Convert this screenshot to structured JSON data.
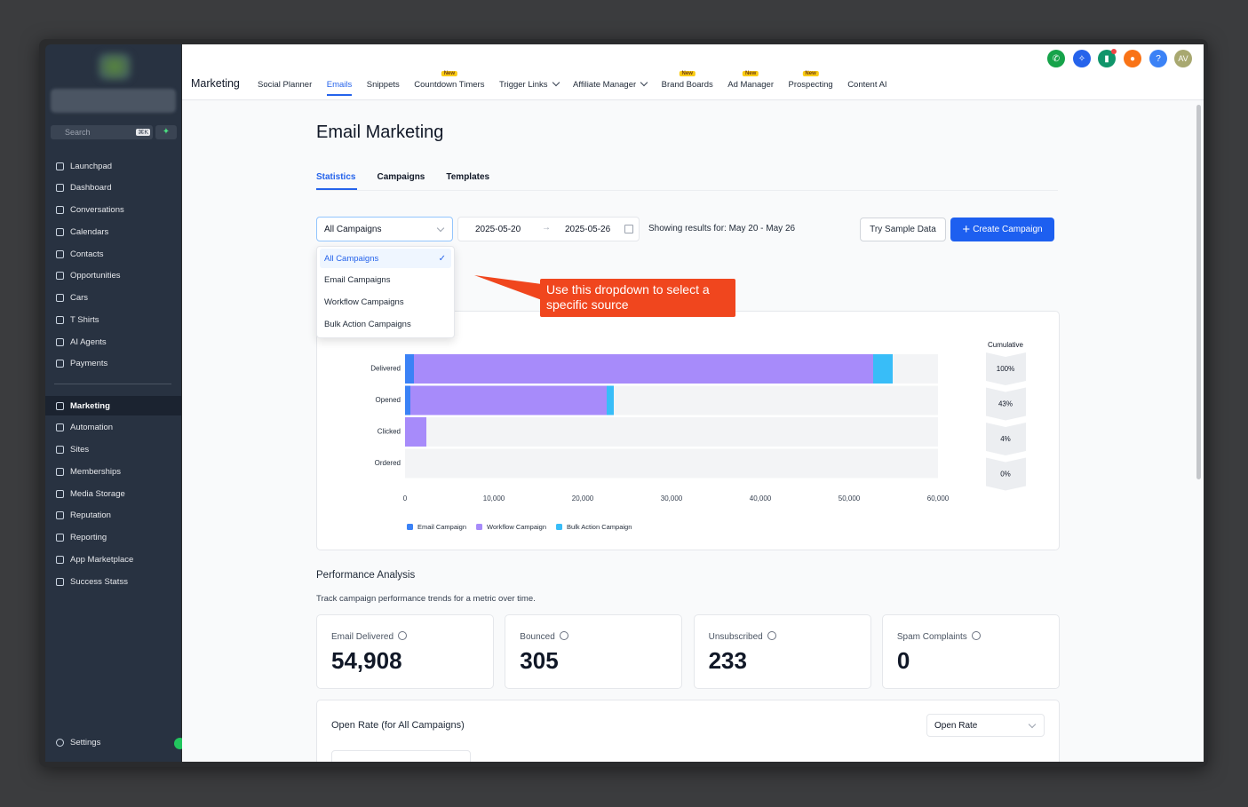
{
  "sidebar": {
    "search": {
      "placeholder": "Search",
      "shortcut": "⌘K"
    },
    "items": [
      "Launchpad",
      "Dashboard",
      "Conversations",
      "Calendars",
      "Contacts",
      "Opportunities",
      "Cars",
      "T Shirts",
      "AI Agents",
      "Payments"
    ],
    "items2": [
      "Marketing",
      "Automation",
      "Sites",
      "Memberships",
      "Media Storage",
      "Reputation",
      "Reporting",
      "App Marketplace",
      "Success Statss"
    ],
    "active": "Marketing",
    "settings": "Settings"
  },
  "header": {
    "title": "Marketing",
    "tabs": [
      {
        "label": "Social Planner"
      },
      {
        "label": "Emails",
        "active": true
      },
      {
        "label": "Snippets"
      },
      {
        "label": "Countdown Timers",
        "badge": "New"
      },
      {
        "label": "Trigger Links",
        "menu": true
      },
      {
        "label": "Affiliate Manager",
        "menu": true
      },
      {
        "label": "Brand Boards",
        "badge": "New"
      },
      {
        "label": "Ad Manager",
        "badge": "New"
      },
      {
        "label": "Prospecting",
        "badge": "New"
      },
      {
        "label": "Content AI"
      }
    ],
    "help": "?",
    "avatar": "AV"
  },
  "page": {
    "title": "Email Marketing",
    "tabs": [
      "Statistics",
      "Campaigns",
      "Templates"
    ],
    "active_tab": "Statistics",
    "filter": {
      "selected": "All Campaigns",
      "options": [
        "All Campaigns",
        "Email Campaigns",
        "Workflow Campaigns",
        "Bulk Action Campaigns"
      ],
      "start_date": "2025-05-20",
      "end_date": "2025-05-26",
      "range_text": "Showing results for: May 20 - May 26"
    },
    "buttons": {
      "sample": "Try Sample Data",
      "create": "Create Campaign"
    },
    "callout": "Use this dropdown to select a specific source",
    "performance": {
      "title": "Performance Analysis",
      "subtitle": "Track campaign performance trends for a metric over time.",
      "stats": [
        {
          "label": "Email Delivered",
          "value": "54,908"
        },
        {
          "label": "Bounced",
          "value": "305"
        },
        {
          "label": "Unsubscribed",
          "value": "233"
        },
        {
          "label": "Spam Complaints",
          "value": "0"
        }
      ]
    },
    "open_rate": {
      "title": "Open Rate (for All Campaigns)",
      "metric": "Open Rate"
    }
  },
  "chart_data": {
    "type": "bar",
    "orientation": "horizontal",
    "stacked": true,
    "categories": [
      "Delivered",
      "Opened",
      "Clicked",
      "Ordered"
    ],
    "series": [
      {
        "name": "Email Campaign",
        "color": "#3b82f6",
        "values": [
          1000,
          600,
          0,
          0
        ]
      },
      {
        "name": "Workflow Campaign",
        "color": "#a78bfa",
        "values": [
          51700,
          22100,
          2400,
          0
        ]
      },
      {
        "name": "Bulk Action Campaign",
        "color": "#38bdf8",
        "values": [
          2200,
          800,
          0,
          0
        ]
      }
    ],
    "xlim": [
      0,
      60000
    ],
    "xticks": [
      0,
      {
        "value": 10000,
        "label": "10,000"
      },
      {
        "value": 20000,
        "label": "20,000"
      },
      {
        "value": 30000,
        "label": "30,000"
      },
      {
        "value": 40000,
        "label": "40,000"
      },
      {
        "value": 50000,
        "label": "50,000"
      },
      {
        "value": 60000,
        "label": "60,000"
      }
    ],
    "grid": false,
    "legend": "bottom",
    "cumulative": {
      "title": "Cumulative",
      "values": [
        100,
        43,
        4,
        0
      ],
      "value_labels": [
        "100%",
        "43%",
        "4%",
        "0%"
      ]
    }
  }
}
